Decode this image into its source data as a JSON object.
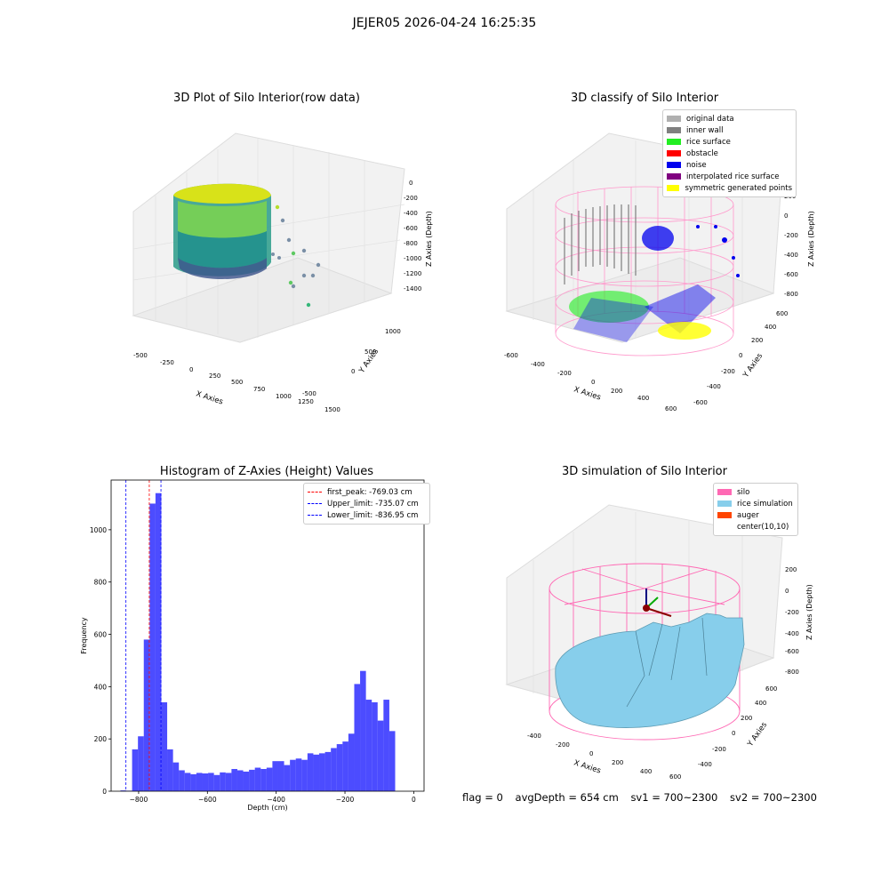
{
  "suptitle": "JEJER05 2026-04-24 16:25:35",
  "chart_data": [
    {
      "type": "scatter",
      "title": "3D Plot of Silo Interior(row data)",
      "xlabel": "X Axies",
      "ylabel": "Y Axies",
      "zlabel": "Z Axies (Depth)",
      "xticks": [
        "-500",
        "-250",
        "0",
        "250",
        "500",
        "750",
        "1000",
        "1250",
        "1500"
      ],
      "yticks": [
        "-500",
        "0",
        "500",
        "1000"
      ],
      "zticks": [
        "0",
        "-200",
        "-400",
        "-600",
        "-800",
        "-1000",
        "-1200",
        "-1400"
      ],
      "colormap": "viridis"
    },
    {
      "type": "scatter",
      "title": "3D classify of Silo Interior",
      "xlabel": "X Axies",
      "ylabel": "Y Axies",
      "zlabel": "Z Axies (Depth)",
      "xticks": [
        "-600",
        "-400",
        "-200",
        "0",
        "200",
        "400",
        "600"
      ],
      "yticks": [
        "-600",
        "-400",
        "-200",
        "0",
        "200",
        "400",
        "600"
      ],
      "zticks": [
        "200",
        "0",
        "-200",
        "-400",
        "-600",
        "-800"
      ],
      "legend": [
        {
          "label": "original data",
          "color": "#b0b0b0"
        },
        {
          "label": "inner wall",
          "color": "#808080"
        },
        {
          "label": "rice surface",
          "color": "#22ee22"
        },
        {
          "label": "obstacle",
          "color": "#ff0000"
        },
        {
          "label": "noise",
          "color": "#0000ee"
        },
        {
          "label": "interpolated rice surface",
          "color": "#800080"
        },
        {
          "label": "symmetric generated points",
          "color": "#ffff00"
        }
      ]
    },
    {
      "type": "bar",
      "title": "Histogram of Z-Axies (Height) Values",
      "xlabel": "Depth (cm)",
      "ylabel": "Frequency",
      "xlim": [
        -880,
        30
      ],
      "ylim": [
        0,
        1190
      ],
      "xticks": [
        -800,
        -600,
        -400,
        -200,
        0
      ],
      "yticks": [
        0,
        200,
        400,
        600,
        800,
        1000
      ],
      "bin_width": 17,
      "bin_start": -853,
      "values": [
        3,
        2,
        160,
        210,
        580,
        1100,
        1140,
        340,
        160,
        110,
        80,
        70,
        65,
        70,
        68,
        70,
        62,
        72,
        70,
        85,
        80,
        75,
        82,
        90,
        85,
        90,
        115,
        115,
        100,
        120,
        125,
        120,
        145,
        140,
        145,
        150,
        165,
        180,
        190,
        220,
        410,
        460,
        350,
        340,
        270,
        350,
        230
      ],
      "color": "#0000ff",
      "lines": [
        {
          "label": "first_peak: -769.03 cm",
          "value": -769.03,
          "color": "#ff0000"
        },
        {
          "label": "Upper_limit: -735.07 cm",
          "value": -735.07,
          "color": "#0000ff"
        },
        {
          "label": "Lower_limit: -836.95 cm",
          "value": -836.95,
          "color": "#0000ff"
        }
      ]
    },
    {
      "type": "area",
      "title": "3D simulation of Silo Interior",
      "xlabel": "X Axies",
      "ylabel": "Y Axies",
      "zlabel": "Z Axies (Depth)",
      "xticks": [
        "-400",
        "-200",
        "0",
        "200",
        "400",
        "600"
      ],
      "yticks": [
        "-400",
        "-200",
        "0",
        "200",
        "400",
        "600"
      ],
      "zticks": [
        "200",
        "0",
        "-200",
        "-400",
        "-600",
        "-800"
      ],
      "legend": [
        {
          "label": "silo",
          "color": "#ff69b4"
        },
        {
          "label": "rice simulation",
          "color": "#87ceeb"
        },
        {
          "label": "auger",
          "color": "#ff4500"
        },
        {
          "label": "center(10,10)",
          "color": "#ffffff"
        }
      ]
    }
  ],
  "footer": {
    "flag": "flag = 0",
    "avg": "avgDepth = 654 cm",
    "sv1": "sv1 = 700~2300",
    "sv2": "sv2 = 700~2300"
  }
}
